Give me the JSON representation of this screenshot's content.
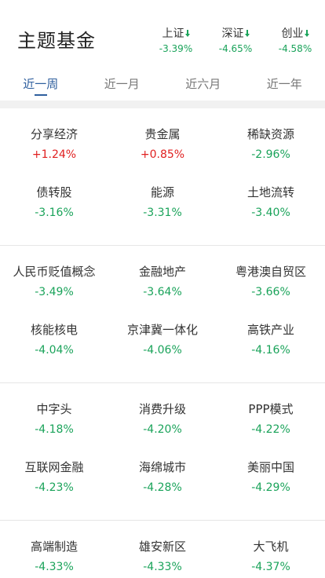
{
  "header": {
    "title": "主题基金",
    "indices": [
      {
        "name": "上证",
        "change": "-3.39%",
        "trend": "down"
      },
      {
        "name": "深证",
        "change": "-4.65%",
        "trend": "down"
      },
      {
        "name": "创业",
        "change": "-4.58%",
        "trend": "down"
      }
    ]
  },
  "tabs": [
    {
      "label": "近一周",
      "active": true
    },
    {
      "label": "近一月",
      "active": false
    },
    {
      "label": "近六月",
      "active": false
    },
    {
      "label": "近一年",
      "active": false
    }
  ],
  "colors": {
    "up": "#e02020",
    "down": "#1aa35a",
    "accent": "#2f5f9e"
  },
  "groups": [
    [
      {
        "name": "分享经济",
        "change": "+1.24%",
        "trend": "up"
      },
      {
        "name": "贵金属",
        "change": "+0.85%",
        "trend": "up"
      },
      {
        "name": "稀缺资源",
        "change": "-2.96%",
        "trend": "down"
      },
      {
        "name": "债转股",
        "change": "-3.16%",
        "trend": "down"
      },
      {
        "name": "能源",
        "change": "-3.31%",
        "trend": "down"
      },
      {
        "name": "土地流转",
        "change": "-3.40%",
        "trend": "down"
      }
    ],
    [
      {
        "name": "人民币贬值概念",
        "change": "-3.49%",
        "trend": "down"
      },
      {
        "name": "金融地产",
        "change": "-3.64%",
        "trend": "down"
      },
      {
        "name": "粤港澳自贸区",
        "change": "-3.66%",
        "trend": "down"
      },
      {
        "name": "核能核电",
        "change": "-4.04%",
        "trend": "down"
      },
      {
        "name": "京津冀一体化",
        "change": "-4.06%",
        "trend": "down"
      },
      {
        "name": "高铁产业",
        "change": "-4.16%",
        "trend": "down"
      }
    ],
    [
      {
        "name": "中字头",
        "change": "-4.18%",
        "trend": "down"
      },
      {
        "name": "消费升级",
        "change": "-4.20%",
        "trend": "down"
      },
      {
        "name": "PPP模式",
        "change": "-4.22%",
        "trend": "down"
      },
      {
        "name": "互联网金融",
        "change": "-4.23%",
        "trend": "down"
      },
      {
        "name": "海绵城市",
        "change": "-4.28%",
        "trend": "down"
      },
      {
        "name": "美丽中国",
        "change": "-4.29%",
        "trend": "down"
      }
    ],
    [
      {
        "name": "高端制造",
        "change": "-4.33%",
        "trend": "down"
      },
      {
        "name": "雄安新区",
        "change": "-4.33%",
        "trend": "down"
      },
      {
        "name": "大飞机",
        "change": "-4.37%",
        "trend": "down"
      }
    ]
  ]
}
